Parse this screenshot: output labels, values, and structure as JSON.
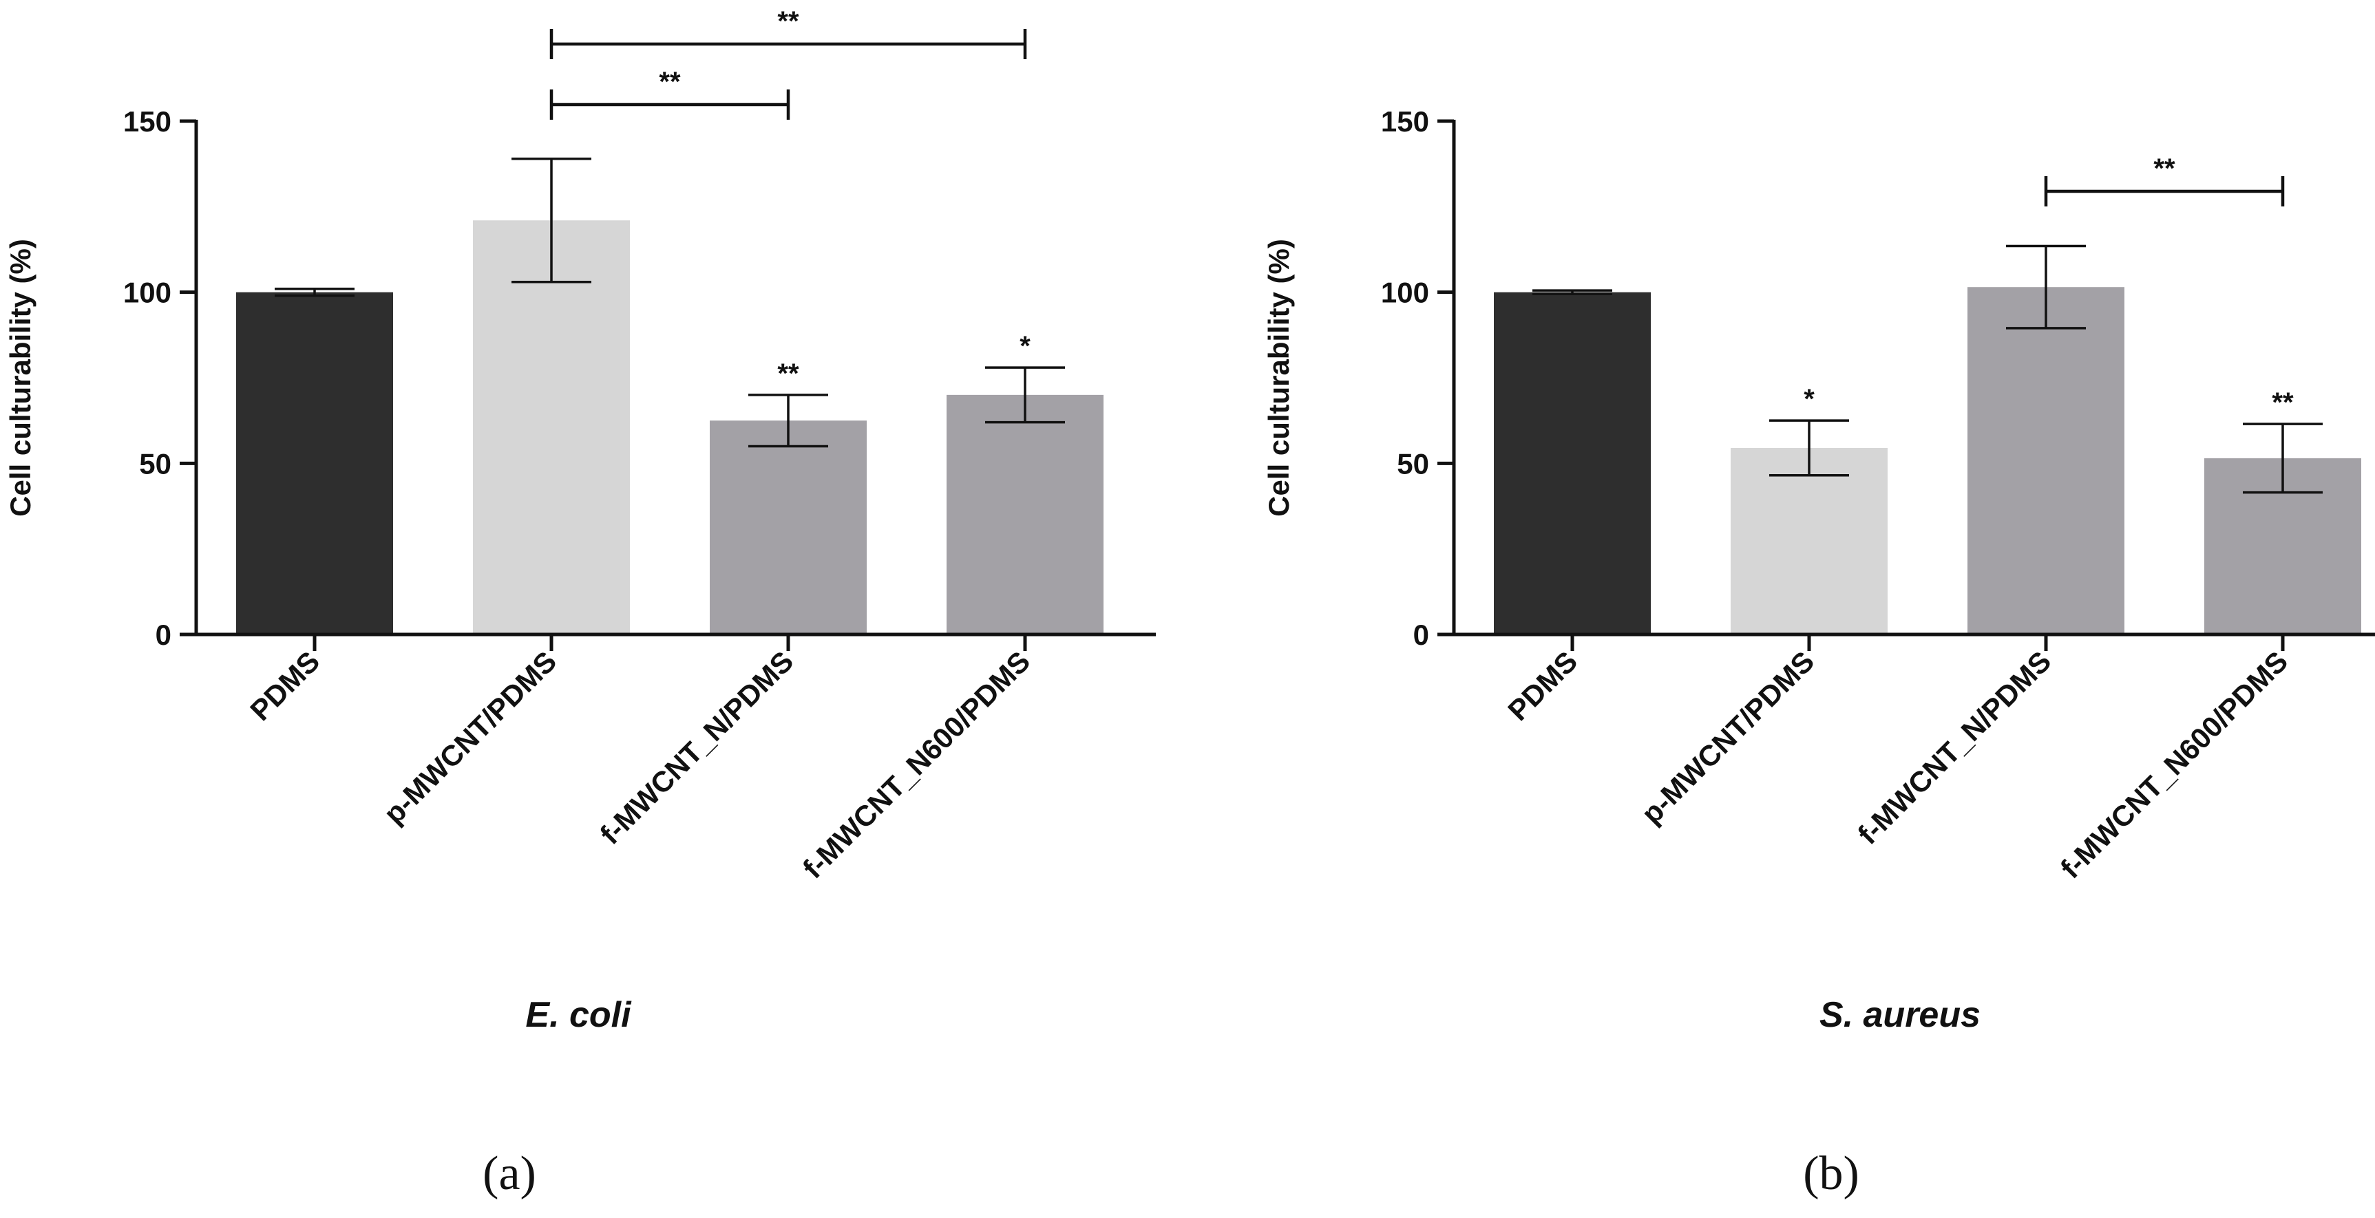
{
  "chart_data": [
    {
      "type": "bar",
      "panel_label": "(a)",
      "organism": "E. coli",
      "ylabel": "Cell culturability (%)",
      "xlabel": "",
      "ylim": [
        0,
        150
      ],
      "yticks": [
        0,
        50,
        100,
        150
      ],
      "grid": false,
      "categories": [
        "PDMS",
        "p-MWCNT/PDMS",
        "f-MWCNT_N/PDMS",
        "f-MWCNT_N600/PDMS"
      ],
      "values": [
        100,
        121,
        62.5,
        70
      ],
      "errors": [
        1,
        18,
        7.5,
        8
      ],
      "colors": [
        "#2e2e2e",
        "#d6d6d6",
        "#a3a1a6",
        "#a3a1a6"
      ],
      "bar_significance": [
        "",
        "",
        "**",
        "*"
      ],
      "brackets": [
        {
          "from": 1,
          "to": 2,
          "label": "**"
        },
        {
          "from": 1,
          "to": 3,
          "label": "**"
        }
      ]
    },
    {
      "type": "bar",
      "panel_label": "(b)",
      "organism": "S. aureus",
      "ylabel": "Cell culturability (%)",
      "xlabel": "",
      "ylim": [
        0,
        150
      ],
      "yticks": [
        0,
        50,
        100,
        150
      ],
      "grid": false,
      "categories": [
        "PDMS",
        "p-MWCNT/PDMS",
        "f-MWCNT_N/PDMS",
        "f-MWCNT_N600/PDMS"
      ],
      "values": [
        100,
        54.5,
        101.5,
        51.5
      ],
      "errors": [
        0.5,
        8,
        12,
        10
      ],
      "colors": [
        "#2e2e2e",
        "#d6d6d6",
        "#a3a1a6",
        "#a3a1a6"
      ],
      "bar_significance": [
        "",
        "*",
        "",
        "**"
      ],
      "brackets": [
        {
          "from": 2,
          "to": 3,
          "label": "**"
        }
      ]
    }
  ]
}
